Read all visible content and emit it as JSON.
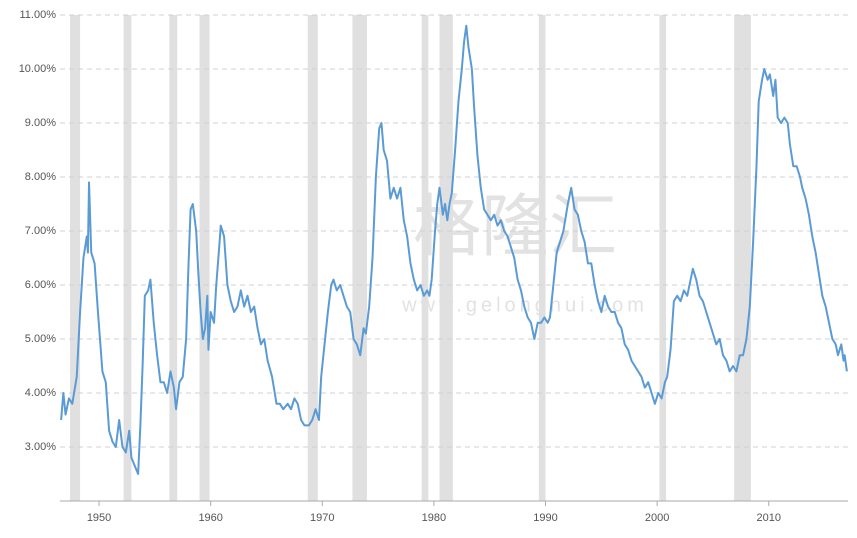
{
  "chart_data": {
    "type": "line",
    "watermark_text": "格隆汇",
    "watermark_url": "www.gelonghui.com",
    "xlim": [
      1946.5,
      2017.1
    ],
    "ylim": [
      2,
      11
    ],
    "xticks": [
      1950,
      1960,
      1970,
      1980,
      1990,
      2000,
      2010
    ],
    "yticks": [
      {
        "value": 3,
        "label": "3.00%"
      },
      {
        "value": 4,
        "label": "4.00%"
      },
      {
        "value": 5,
        "label": "5.00%"
      },
      {
        "value": 6,
        "label": "6.00%"
      },
      {
        "value": 7,
        "label": "7.00%"
      },
      {
        "value": 8,
        "label": "8.00%"
      },
      {
        "value": 9,
        "label": "9.00%"
      },
      {
        "value": 10,
        "label": "10.00%"
      },
      {
        "value": 11,
        "label": "11.00%"
      }
    ],
    "grid": true,
    "band_color": "#e0e0e0",
    "bands": [
      [
        1947.4,
        1948.3
      ],
      [
        1952.2,
        1952.9
      ],
      [
        1956.3,
        1957.0
      ],
      [
        1959.0,
        1959.9
      ],
      [
        1968.7,
        1969.6
      ],
      [
        1972.7,
        1974.0
      ],
      [
        1978.9,
        1979.5
      ],
      [
        1980.5,
        1981.7
      ],
      [
        1989.4,
        1990.0
      ],
      [
        2000.2,
        2000.8
      ],
      [
        2006.9,
        2008.4
      ]
    ],
    "series": [
      {
        "color": "#5b9bd5",
        "x": [
          1946.6,
          1946.8,
          1947.0,
          1947.3,
          1947.6,
          1948.0,
          1948.3,
          1948.6,
          1948.9,
          1949.0,
          1949.1,
          1949.3,
          1949.6,
          1949.9,
          1950.3,
          1950.6,
          1950.9,
          1951.2,
          1951.5,
          1951.8,
          1952.1,
          1952.4,
          1952.7,
          1952.9,
          1953.3,
          1953.5,
          1953.7,
          1953.9,
          1954.1,
          1954.4,
          1954.6,
          1954.9,
          1955.2,
          1955.5,
          1955.8,
          1956.1,
          1956.4,
          1956.7,
          1956.9,
          1957.2,
          1957.5,
          1957.8,
          1958.0,
          1958.2,
          1958.4,
          1958.7,
          1958.9,
          1959.1,
          1959.3,
          1959.5,
          1959.7,
          1959.8,
          1960.0,
          1960.3,
          1960.5,
          1960.8,
          1960.9,
          1961.2,
          1961.5,
          1961.8,
          1962.1,
          1962.4,
          1962.7,
          1963.0,
          1963.3,
          1963.6,
          1963.9,
          1964.2,
          1964.5,
          1964.8,
          1965.1,
          1965.5,
          1965.9,
          1966.2,
          1966.5,
          1966.9,
          1967.2,
          1967.5,
          1967.8,
          1968.1,
          1968.4,
          1968.8,
          1969.1,
          1969.4,
          1969.7,
          1969.9,
          1970.2,
          1970.5,
          1970.8,
          1971.0,
          1971.3,
          1971.6,
          1971.9,
          1972.2,
          1972.5,
          1972.8,
          1973.1,
          1973.4,
          1973.7,
          1973.9,
          1974.2,
          1974.5,
          1974.8,
          1975.1,
          1975.3,
          1975.5,
          1975.8,
          1976.1,
          1976.4,
          1976.7,
          1977.0,
          1977.3,
          1977.6,
          1977.9,
          1978.2,
          1978.5,
          1978.8,
          1979.1,
          1979.4,
          1979.6,
          1979.8,
          1980.1,
          1980.3,
          1980.5,
          1980.8,
          1981.0,
          1981.2,
          1981.4,
          1981.6,
          1981.9,
          1982.2,
          1982.5,
          1982.7,
          1982.9,
          1983.1,
          1983.4,
          1983.6,
          1983.9,
          1984.2,
          1984.5,
          1984.8,
          1985.1,
          1985.4,
          1985.7,
          1986.0,
          1986.3,
          1986.6,
          1986.9,
          1987.2,
          1987.5,
          1987.8,
          1988.1,
          1988.4,
          1988.7,
          1989.0,
          1989.3,
          1989.6,
          1989.9,
          1990.2,
          1990.4,
          1990.7,
          1991.0,
          1991.3,
          1991.6,
          1992.0,
          1992.3,
          1992.6,
          1992.9,
          1993.2,
          1993.5,
          1993.8,
          1994.1,
          1994.4,
          1994.7,
          1995.0,
          1995.3,
          1995.6,
          1995.9,
          1996.2,
          1996.5,
          1996.8,
          1997.1,
          1997.4,
          1997.7,
          1998.0,
          1998.3,
          1998.6,
          1998.9,
          1999.2,
          1999.5,
          1999.8,
          2000.1,
          2000.4,
          2000.7,
          2000.9,
          2001.2,
          2001.5,
          2001.8,
          2002.1,
          2002.4,
          2002.7,
          2003.0,
          2003.2,
          2003.5,
          2003.8,
          2004.1,
          2004.4,
          2004.7,
          2005.0,
          2005.3,
          2005.6,
          2005.9,
          2006.2,
          2006.5,
          2006.8,
          2007.1,
          2007.4,
          2007.7,
          2008.0,
          2008.3,
          2008.6,
          2008.9,
          2009.1,
          2009.4,
          2009.6,
          2009.9,
          2010.1,
          2010.4,
          2010.6,
          2010.8,
          2011.1,
          2011.4,
          2011.7,
          2011.9,
          2012.2,
          2012.5,
          2012.8,
          2013.0,
          2013.3,
          2013.6,
          2013.9,
          2014.2,
          2014.5,
          2014.8,
          2015.1,
          2015.4,
          2015.7,
          2016.0,
          2016.2,
          2016.5,
          2016.7,
          2016.8,
          2017.0
        ],
        "values": [
          3.5,
          4.0,
          3.6,
          3.9,
          3.8,
          4.3,
          5.5,
          6.5,
          6.9,
          6.6,
          7.9,
          6.6,
          6.4,
          5.5,
          4.4,
          4.2,
          3.3,
          3.1,
          3.0,
          3.5,
          3.0,
          2.9,
          3.3,
          2.8,
          2.6,
          2.5,
          3.4,
          4.5,
          5.8,
          5.9,
          6.1,
          5.3,
          4.7,
          4.2,
          4.2,
          4.0,
          4.4,
          4.1,
          3.7,
          4.2,
          4.3,
          5.0,
          6.3,
          7.4,
          7.5,
          7.0,
          6.2,
          5.5,
          5.0,
          5.2,
          5.8,
          4.8,
          5.5,
          5.3,
          6.0,
          6.8,
          7.1,
          6.9,
          6.0,
          5.7,
          5.5,
          5.6,
          5.9,
          5.6,
          5.8,
          5.5,
          5.6,
          5.2,
          4.9,
          5.0,
          4.6,
          4.3,
          3.8,
          3.8,
          3.7,
          3.8,
          3.7,
          3.9,
          3.8,
          3.5,
          3.4,
          3.4,
          3.5,
          3.7,
          3.5,
          4.3,
          4.9,
          5.5,
          6.0,
          6.1,
          5.9,
          6.0,
          5.8,
          5.6,
          5.5,
          5.0,
          4.9,
          4.7,
          5.2,
          5.1,
          5.6,
          6.5,
          8.0,
          8.9,
          9.0,
          8.5,
          8.3,
          7.6,
          7.8,
          7.6,
          7.8,
          7.2,
          6.9,
          6.4,
          6.1,
          5.9,
          6.0,
          5.8,
          5.9,
          5.8,
          6.1,
          7.0,
          7.5,
          7.8,
          7.3,
          7.5,
          7.2,
          7.5,
          7.7,
          8.5,
          9.4,
          10.0,
          10.5,
          10.8,
          10.4,
          10.0,
          9.3,
          8.4,
          7.8,
          7.4,
          7.3,
          7.2,
          7.3,
          7.1,
          7.2,
          7.0,
          6.9,
          6.7,
          6.5,
          6.1,
          5.9,
          5.6,
          5.4,
          5.3,
          5.0,
          5.3,
          5.3,
          5.4,
          5.3,
          5.4,
          6.0,
          6.6,
          6.8,
          7.0,
          7.5,
          7.8,
          7.4,
          7.3,
          7.0,
          6.8,
          6.4,
          6.4,
          6.0,
          5.7,
          5.5,
          5.8,
          5.6,
          5.5,
          5.5,
          5.3,
          5.2,
          4.9,
          4.8,
          4.6,
          4.5,
          4.4,
          4.3,
          4.1,
          4.2,
          4.0,
          3.8,
          4.0,
          3.9,
          4.2,
          4.3,
          4.8,
          5.7,
          5.8,
          5.7,
          5.9,
          5.8,
          6.1,
          6.3,
          6.1,
          5.8,
          5.7,
          5.5,
          5.3,
          5.1,
          4.9,
          5.0,
          4.7,
          4.6,
          4.4,
          4.5,
          4.4,
          4.7,
          4.7,
          5.0,
          5.6,
          6.8,
          8.2,
          9.4,
          9.8,
          10.0,
          9.8,
          9.9,
          9.5,
          9.8,
          9.1,
          9.0,
          9.1,
          9.0,
          8.6,
          8.2,
          8.2,
          8.0,
          7.8,
          7.6,
          7.3,
          6.9,
          6.6,
          6.2,
          5.8,
          5.6,
          5.3,
          5.0,
          4.9,
          4.7,
          4.9,
          4.6,
          4.7,
          4.4
        ]
      }
    ]
  }
}
